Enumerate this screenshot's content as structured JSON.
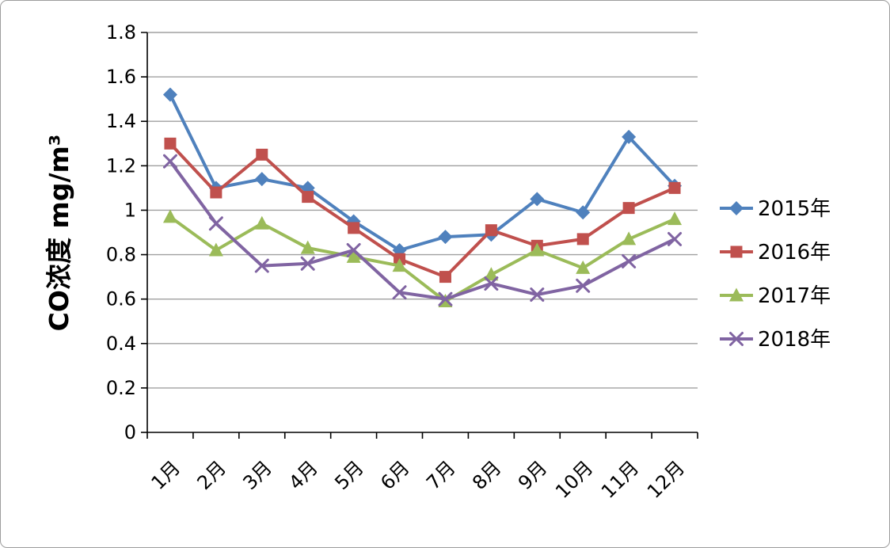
{
  "chart_data": {
    "type": "line",
    "title": "",
    "xlabel": "",
    "ylabel": "CO浓度  mg/m³",
    "categories": [
      "1月",
      "2月",
      "3月",
      "4月",
      "5月",
      "6月",
      "7月",
      "8月",
      "9月",
      "10月",
      "11月",
      "12月"
    ],
    "series": [
      {
        "name": "2015年",
        "color": "#4F81BD",
        "marker": "diamond",
        "values": [
          1.52,
          1.1,
          1.14,
          1.1,
          0.95,
          0.82,
          0.88,
          0.89,
          1.05,
          0.99,
          1.33,
          1.11
        ]
      },
      {
        "name": "2016年",
        "color": "#C0504D",
        "marker": "square",
        "values": [
          1.3,
          1.08,
          1.25,
          1.06,
          0.92,
          0.78,
          0.7,
          0.91,
          0.84,
          0.87,
          1.01,
          1.1
        ]
      },
      {
        "name": "2017年",
        "color": "#9BBB59",
        "marker": "triangle",
        "values": [
          0.97,
          0.82,
          0.94,
          0.83,
          0.79,
          0.75,
          0.59,
          0.71,
          0.82,
          0.74,
          0.87,
          0.96
        ]
      },
      {
        "name": "2018年",
        "color": "#8064A2",
        "marker": "x",
        "values": [
          1.22,
          0.94,
          0.75,
          0.76,
          0.82,
          0.63,
          0.6,
          0.67,
          0.62,
          0.66,
          0.77,
          0.87
        ]
      }
    ],
    "ylim": [
      0,
      1.8
    ],
    "ytick_step": 0.2,
    "ytick_labels": [
      "0",
      "0.2",
      "0.4",
      "0.6",
      "0.8",
      "1",
      "1.2",
      "1.4",
      "1.6",
      "1.8"
    ],
    "grid": true,
    "legend_position": "right",
    "gridline_color": "#A0A0A0",
    "axis_color": "#000000",
    "text_color": "#000000"
  }
}
